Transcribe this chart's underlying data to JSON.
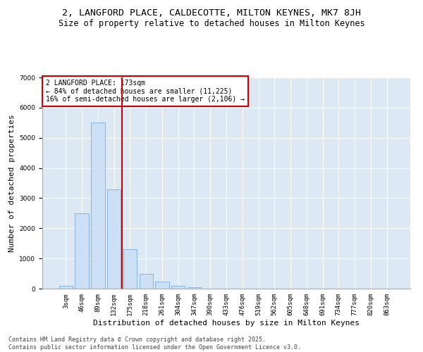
{
  "title_line1": "2, LANGFORD PLACE, CALDECOTTE, MILTON KEYNES, MK7 8JH",
  "title_line2": "Size of property relative to detached houses in Milton Keynes",
  "xlabel": "Distribution of detached houses by size in Milton Keynes",
  "ylabel": "Number of detached properties",
  "categories": [
    "3sqm",
    "46sqm",
    "89sqm",
    "132sqm",
    "175sqm",
    "218sqm",
    "261sqm",
    "304sqm",
    "347sqm",
    "390sqm",
    "433sqm",
    "476sqm",
    "519sqm",
    "562sqm",
    "605sqm",
    "648sqm",
    "691sqm",
    "734sqm",
    "777sqm",
    "820sqm",
    "863sqm"
  ],
  "values": [
    100,
    2500,
    5500,
    3300,
    1300,
    500,
    230,
    100,
    50,
    0,
    0,
    0,
    0,
    0,
    0,
    0,
    0,
    0,
    0,
    0,
    0
  ],
  "bar_color": "#ccdff5",
  "bar_edgecolor": "#7aabda",
  "vline_color": "#cc0000",
  "vline_xindex": 3.5,
  "annotation_text": "2 LANGFORD PLACE: 173sqm\n← 84% of detached houses are smaller (11,225)\n16% of semi-detached houses are larger (2,106) →",
  "annotation_box_edgecolor": "#cc0000",
  "ylim": [
    0,
    7000
  ],
  "yticks": [
    0,
    1000,
    2000,
    3000,
    4000,
    5000,
    6000,
    7000
  ],
  "plot_bg_color": "#dde8f5",
  "fig_bg_color": "#ffffff",
  "grid_color": "#ffffff",
  "footer_text": "Contains HM Land Registry data © Crown copyright and database right 2025.\nContains public sector information licensed under the Open Government Licence v3.0.",
  "title_fontsize": 9.5,
  "subtitle_fontsize": 8.5,
  "axis_label_fontsize": 8,
  "tick_fontsize": 6.5,
  "annotation_fontsize": 7,
  "footer_fontsize": 6
}
